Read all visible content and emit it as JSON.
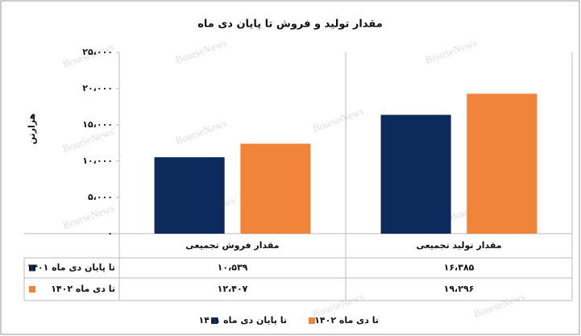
{
  "chart_data": {
    "type": "bar",
    "title": "مقدار تولید و فروش تا پایان دی ماه",
    "y_label": "هزارتن",
    "watermark": "BourseNews",
    "categories": [
      "مقدار فروش تجمیعی",
      "مقدار تولید تجمیعی"
    ],
    "series": [
      {
        "name": "تا پایان دی ماه ۱۴۰۱",
        "color": "#0d2a5c",
        "values": [
          10539,
          16385
        ],
        "value_labels": [
          "۱۰،۵۳۹",
          "۱۶،۳۸۵"
        ]
      },
      {
        "name": "تا دی ماه ۱۴۰۲",
        "color": "#f0843a",
        "values": [
          12407,
          19296
        ],
        "value_labels": [
          "۱۲،۴۰۷",
          "۱۹،۲۹۶"
        ]
      }
    ],
    "ylim": [
      0,
      25000
    ],
    "yticks": [
      {
        "value": 0,
        "label": "۰"
      },
      {
        "value": 5000,
        "label": "۵،۰۰۰"
      },
      {
        "value": 10000,
        "label": "۱۰،۰۰۰"
      },
      {
        "value": 15000,
        "label": "۱۵،۰۰۰"
      },
      {
        "value": 20000,
        "label": "۲۰،۰۰۰"
      },
      {
        "value": 25000,
        "label": "۲۵،۰۰۰"
      }
    ],
    "grid": false
  }
}
